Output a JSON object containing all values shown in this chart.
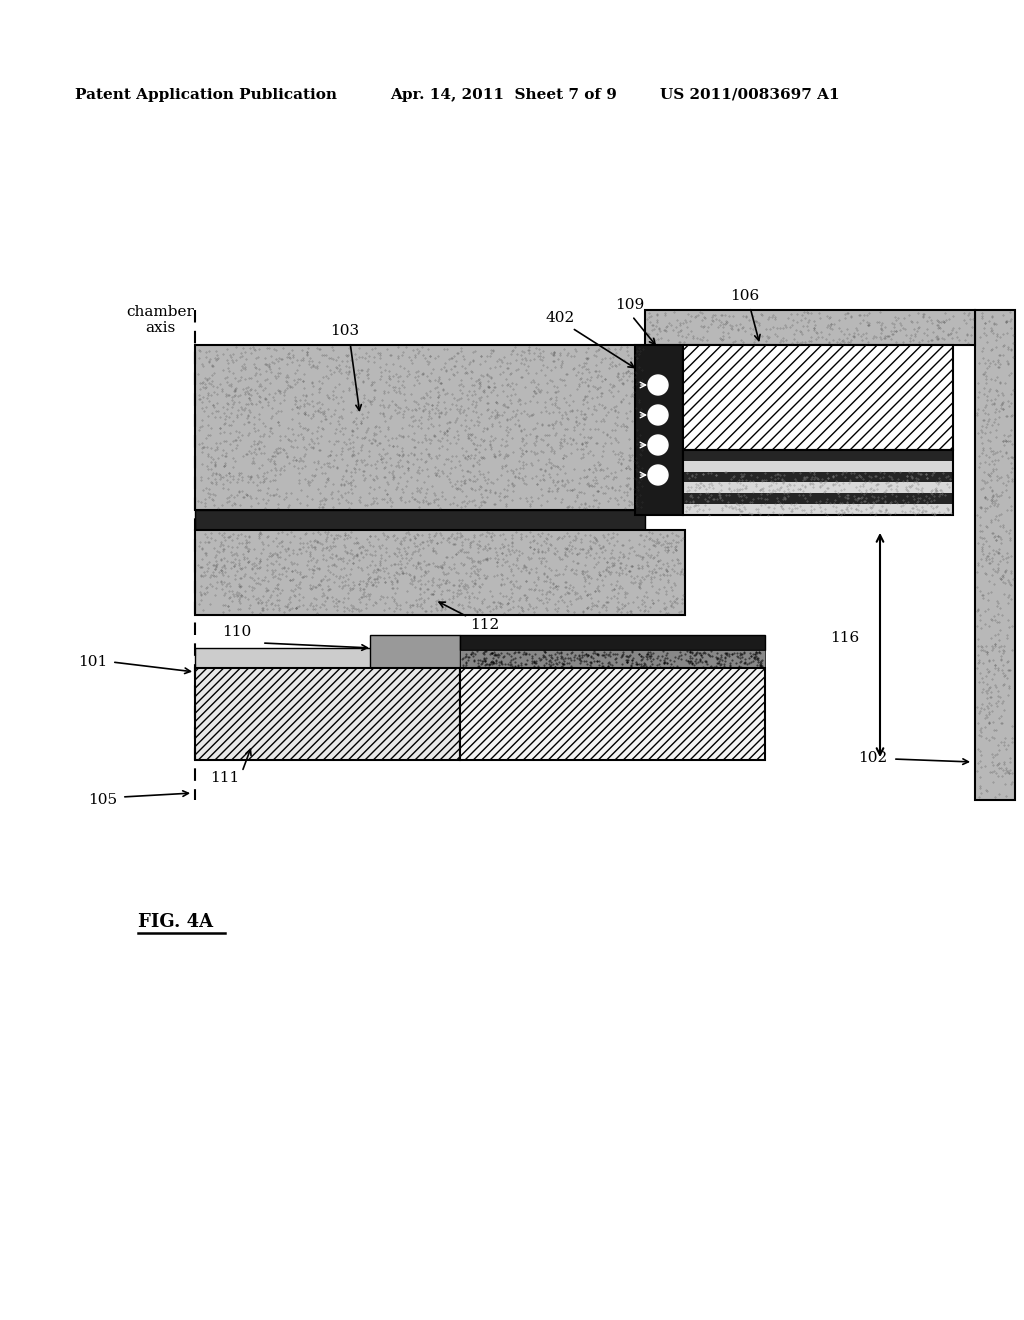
{
  "header_left": "Patent Application Publication",
  "header_center": "Apr. 14, 2011  Sheet 7 of 9",
  "header_right": "US 2011/0083697 A1",
  "fig_label": "FIG. 4A",
  "bg_color": "#ffffff"
}
